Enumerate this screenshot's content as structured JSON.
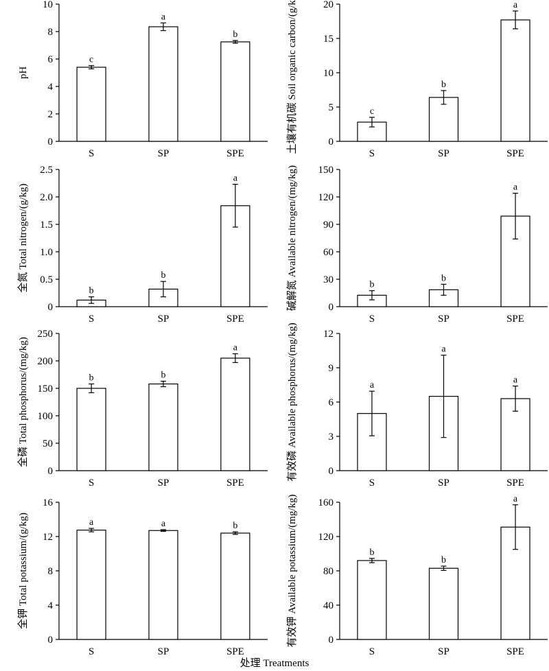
{
  "figure": {
    "xlabel": "处理 Treatments"
  },
  "chart_data": [
    {
      "type": "bar",
      "categories": [
        "S",
        "SP",
        "SPE"
      ],
      "ylabel": "pH",
      "ylim": [
        0,
        10
      ],
      "yticks": [
        0,
        2,
        4,
        6,
        8,
        10
      ],
      "values": [
        5.4,
        8.35,
        7.25
      ],
      "errors": [
        0.12,
        0.28,
        0.1
      ],
      "labels": [
        "c",
        "a",
        "b"
      ]
    },
    {
      "type": "bar",
      "categories": [
        "S",
        "SP",
        "SPE"
      ],
      "ylabel": "土壤有机碳 Soil organic carbon/(g/kg)",
      "ylim": [
        0,
        20
      ],
      "yticks": [
        0,
        5,
        10,
        15,
        20
      ],
      "values": [
        2.8,
        6.4,
        17.7
      ],
      "errors": [
        0.7,
        1.0,
        1.3
      ],
      "labels": [
        "c",
        "b",
        "a"
      ]
    },
    {
      "type": "bar",
      "categories": [
        "S",
        "SP",
        "SPE"
      ],
      "ylabel": "全氮 Total nitrogen/(g/kg)",
      "ylim": [
        0,
        2.5
      ],
      "yticks": [
        "0",
        "0.5",
        "1.0",
        "1.5",
        "2.0",
        "2.5"
      ],
      "values": [
        0.12,
        0.32,
        1.84
      ],
      "errors": [
        0.06,
        0.14,
        0.39
      ],
      "labels": [
        "b",
        "b",
        "a"
      ]
    },
    {
      "type": "bar",
      "categories": [
        "S",
        "SP",
        "SPE"
      ],
      "ylabel": "碱解氮 Available nitrogen/(mg/kg)",
      "ylim": [
        0,
        150
      ],
      "yticks": [
        0,
        30,
        60,
        90,
        120,
        150
      ],
      "values": [
        12.5,
        18.5,
        99
      ],
      "errors": [
        5,
        6,
        25
      ],
      "labels": [
        "b",
        "b",
        "a"
      ]
    },
    {
      "type": "bar",
      "categories": [
        "S",
        "SP",
        "SPE"
      ],
      "ylabel": "全磷 Total phosphorus/(mg/kg)",
      "ylim": [
        0,
        250
      ],
      "yticks": [
        0,
        50,
        100,
        150,
        200,
        250
      ],
      "values": [
        150,
        158,
        205
      ],
      "errors": [
        8,
        5,
        8
      ],
      "labels": [
        "b",
        "b",
        "a"
      ]
    },
    {
      "type": "bar",
      "categories": [
        "S",
        "SP",
        "SPE"
      ],
      "ylabel": "有效磷 Available phosphorus/(mg/kg)",
      "ylim": [
        0,
        12
      ],
      "yticks": [
        0,
        3,
        6,
        9,
        12
      ],
      "values": [
        5.0,
        6.5,
        6.3
      ],
      "errors": [
        1.95,
        3.6,
        1.1
      ],
      "labels": [
        "a",
        "a",
        "a"
      ]
    },
    {
      "type": "bar",
      "categories": [
        "S",
        "SP",
        "SPE"
      ],
      "ylabel": "全钾 Total potassium/(g/kg)",
      "ylim": [
        0,
        16
      ],
      "yticks": [
        0,
        4,
        8,
        12,
        16
      ],
      "values": [
        12.75,
        12.7,
        12.4
      ],
      "errors": [
        0.2,
        0.1,
        0.15
      ],
      "labels": [
        "a",
        "a",
        "b"
      ]
    },
    {
      "type": "bar",
      "categories": [
        "S",
        "SP",
        "SPE"
      ],
      "ylabel": "有效钾 Available potassium/(mg/kg)",
      "ylim": [
        0,
        160
      ],
      "yticks": [
        0,
        40,
        80,
        120,
        160
      ],
      "values": [
        92,
        83,
        131
      ],
      "errors": [
        2.5,
        2.5,
        26
      ],
      "labels": [
        "b",
        "b",
        "a"
      ]
    }
  ]
}
